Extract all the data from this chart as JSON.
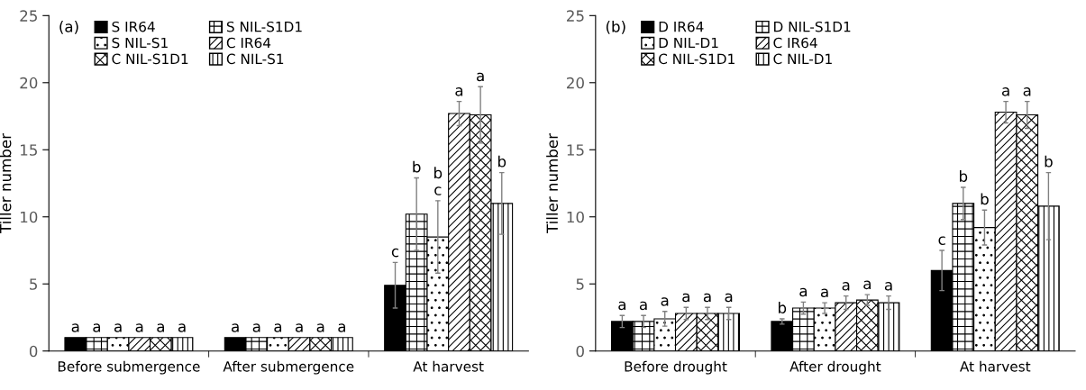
{
  "chart_data": [
    {
      "type": "bar",
      "ylabel": "Tiller number",
      "annotations": [
        "(a)"
      ],
      "categories": [
        "Before submergence",
        "After submergence",
        "At harvest"
      ],
      "ylim": [
        0,
        25
      ],
      "yticks": [
        0,
        5,
        10,
        15,
        20,
        25
      ],
      "grid": false,
      "legend": "top left",
      "series": [
        {
          "name": "S IR64",
          "color": "#000000",
          "values": [
            1.0,
            1.0,
            4.9
          ],
          "errors": [
            null,
            null,
            1.7
          ],
          "value_labels": [
            "a",
            "a",
            "c"
          ]
        },
        {
          "name": "S NIL-S1D1",
          "color": "#000000",
          "values": [
            1.0,
            1.0,
            10.2
          ],
          "errors": [
            null,
            null,
            2.7
          ],
          "value_labels": [
            "a",
            "a",
            "b"
          ]
        },
        {
          "name": "S NIL-S1",
          "color": "#000000",
          "values": [
            1.0,
            1.0,
            8.5
          ],
          "errors": [
            null,
            null,
            2.7
          ],
          "value_labels": [
            "a",
            "a",
            "b\nc"
          ]
        },
        {
          "name": "C IR64",
          "color": "#000000",
          "values": [
            1.0,
            1.0,
            17.7
          ],
          "errors": [
            null,
            null,
            0.9
          ],
          "value_labels": [
            "a",
            "a",
            "a"
          ]
        },
        {
          "name": "C NIL-S1D1",
          "color": "#000000",
          "values": [
            1.0,
            1.0,
            17.6
          ],
          "errors": [
            null,
            null,
            2.1
          ],
          "value_labels": [
            "a",
            "a",
            "a"
          ]
        },
        {
          "name": "C NIL-S1",
          "color": "#000000",
          "values": [
            1.0,
            1.0,
            11.0
          ],
          "errors": [
            null,
            null,
            2.3
          ],
          "value_labels": [
            "a",
            "a",
            "b"
          ]
        }
      ]
    },
    {
      "type": "bar",
      "ylabel": "Tiller number",
      "annotations": [
        "(b)"
      ],
      "categories": [
        "Before drought",
        "After drought",
        "At harvest"
      ],
      "ylim": [
        0,
        25
      ],
      "yticks": [
        0,
        5,
        10,
        15,
        20,
        25
      ],
      "grid": false,
      "legend": "top left",
      "series": [
        {
          "name": "D IR64",
          "color": "#000000",
          "values": [
            2.2,
            2.2,
            6.0
          ],
          "errors": [
            0.45,
            0.2,
            1.5
          ],
          "value_labels": [
            "a",
            "b",
            "c"
          ]
        },
        {
          "name": "D NIL-S1D1",
          "color": "#000000",
          "values": [
            2.2,
            3.2,
            11.0
          ],
          "errors": [
            0.45,
            0.45,
            1.2
          ],
          "value_labels": [
            "a",
            "a",
            "b"
          ]
        },
        {
          "name": "D NIL-D1",
          "color": "#000000",
          "values": [
            2.4,
            3.2,
            9.2
          ],
          "errors": [
            0.55,
            0.4,
            1.3
          ],
          "value_labels": [
            "a",
            "a",
            "b"
          ]
        },
        {
          "name": "C IR64",
          "color": "#000000",
          "values": [
            2.8,
            3.6,
            17.8
          ],
          "errors": [
            0.45,
            0.5,
            0.8
          ],
          "value_labels": [
            "a",
            "a",
            "a"
          ]
        },
        {
          "name": "C NIL-S1D1",
          "color": "#000000",
          "values": [
            2.8,
            3.8,
            17.6
          ],
          "errors": [
            0.45,
            0.4,
            1.0
          ],
          "value_labels": [
            "a",
            "a",
            "a"
          ]
        },
        {
          "name": "C NIL-D1",
          "color": "#000000",
          "values": [
            2.8,
            3.6,
            10.8
          ],
          "errors": [
            0.45,
            0.5,
            2.5
          ],
          "value_labels": [
            "a",
            "a",
            "b"
          ]
        }
      ]
    }
  ]
}
